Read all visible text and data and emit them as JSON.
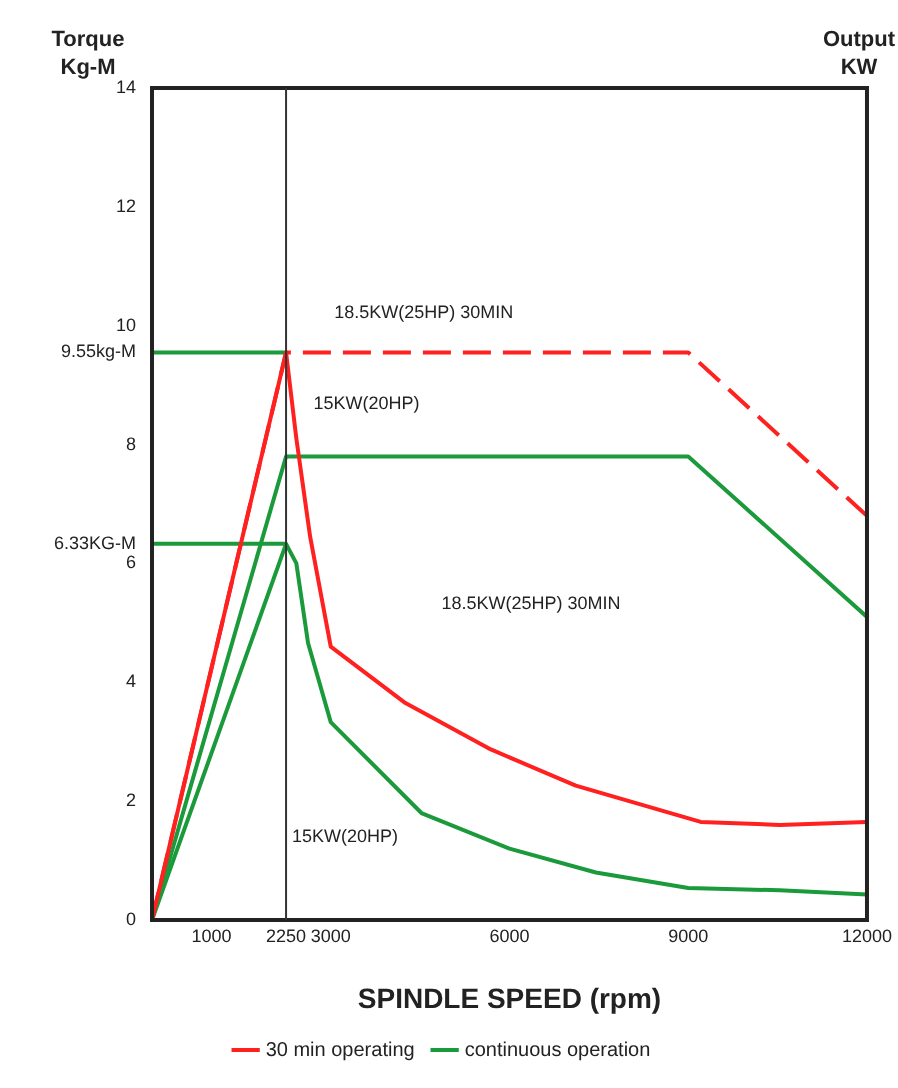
{
  "chart_data": {
    "type": "line",
    "xlabel": "SPINDLE SPEED (rpm)",
    "ylabel": "Torque Kg-M",
    "y2label": "Output KW",
    "xlim": [
      0,
      12000
    ],
    "xticks": [
      1000,
      2250,
      3000,
      6000,
      9000,
      12000
    ],
    "ylim": [
      0,
      14
    ],
    "yticks": [
      0,
      2,
      4,
      6,
      {
        "value": 6.33,
        "label": "6.33KG-M"
      },
      8,
      {
        "value": 9.55,
        "label": "9.55kg-M"
      },
      10,
      12,
      14
    ],
    "grid": false,
    "legend": "bottom",
    "marker": "none",
    "series": [
      {
        "name": "30 min operating",
        "color": "#ff2020",
        "line_style": "solid",
        "x": [
          0,
          2250,
          2423,
          2654,
          3000,
          4254,
          5687,
          7112,
          9209,
          10535,
          12000
        ],
        "values": [
          0,
          9.55,
          8.1,
          6.45,
          4.6,
          3.65,
          2.87,
          2.26,
          1.65,
          1.6,
          1.65
        ]
      },
      {
        "name": "continuous operation",
        "color": "#1a9a3a",
        "line_style": "solid",
        "x": [
          0,
          2250,
          2423,
          2619,
          3000,
          4522,
          6000,
          7450,
          9000,
          10535,
          12000
        ],
        "values": [
          0,
          6.33,
          6.0,
          4.66,
          3.33,
          1.8,
          1.2,
          0.8,
          0.54,
          0.5,
          0.43
        ]
      },
      {
        "color": "#ff2020",
        "line_style": "dashed",
        "x": [
          0,
          2250,
          9000,
          12000
        ],
        "values": [
          0,
          9.55,
          9.55,
          6.8
        ]
      },
      {
        "color": "#1a9a3a",
        "line_style": "solid",
        "x": [
          0,
          2250,
          9000,
          12000
        ],
        "values": [
          0,
          7.8,
          7.8,
          5.1
        ]
      },
      {
        "color": "#1a9a3a",
        "line_style": "solid",
        "x": [
          0,
          2250
        ],
        "values": [
          9.55,
          9.55
        ]
      },
      {
        "color": "#1a9a3a",
        "line_style": "solid",
        "x": [
          0,
          2250
        ],
        "values": [
          6.33,
          6.33
        ]
      }
    ],
    "ref_lines": [
      {
        "axis": "x",
        "value": 2250,
        "color": "#333333"
      }
    ],
    "annotations": [
      "18.5KW(25HP) 30MIN",
      "15KW(20HP)",
      "18.5KW(25HP) 30MIN",
      "15KW(20HP)"
    ]
  }
}
